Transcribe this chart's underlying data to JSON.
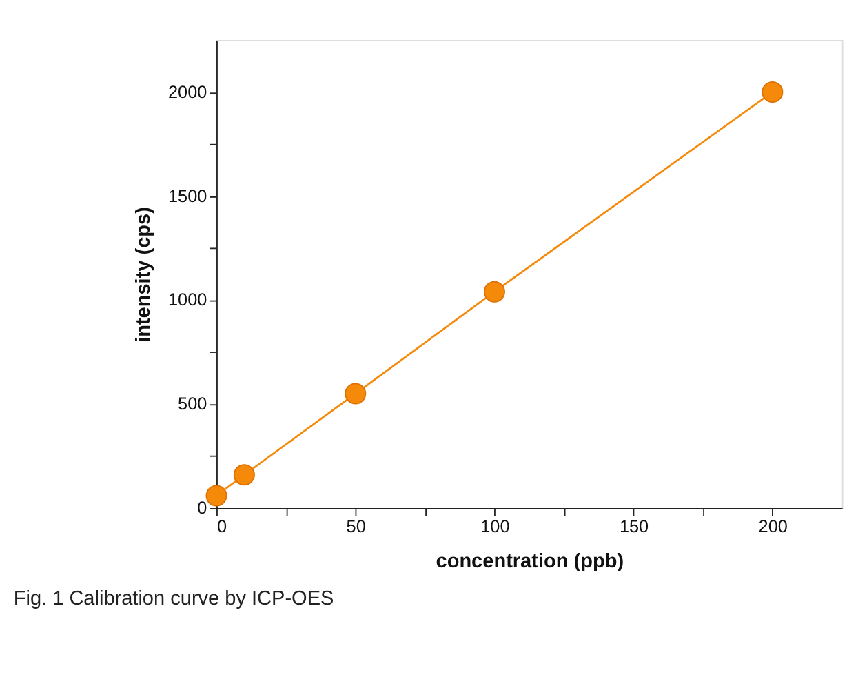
{
  "chart_data": {
    "type": "line",
    "xlabel": "concentration (ppb)",
    "ylabel": "intensity (cps)",
    "x": [
      0,
      10,
      50,
      100,
      200
    ],
    "series": [
      {
        "color": "#f58a0a",
        "values": [
          60,
          160,
          550,
          1040,
          2000
        ],
        "marker": "circle",
        "line_style": "solid"
      }
    ],
    "xlim": [
      0,
      225
    ],
    "ylim": [
      0,
      2250
    ],
    "xticks": [
      0,
      {
        "value": 25,
        "label": null
      },
      50,
      {
        "value": 75,
        "label": null
      },
      100,
      {
        "value": 125,
        "label": null
      },
      150,
      {
        "value": 175,
        "label": null
      },
      200
    ],
    "yticks": [
      0,
      {
        "value": 250,
        "label": null
      },
      500,
      {
        "value": 750,
        "label": null
      },
      1000,
      {
        "value": 1250,
        "label": null
      },
      1500,
      {
        "value": 1750,
        "label": null
      },
      2000
    ],
    "grid": false,
    "annotations": [
      "Fig. 1  Calibration curve by ICP-OES"
    ]
  }
}
